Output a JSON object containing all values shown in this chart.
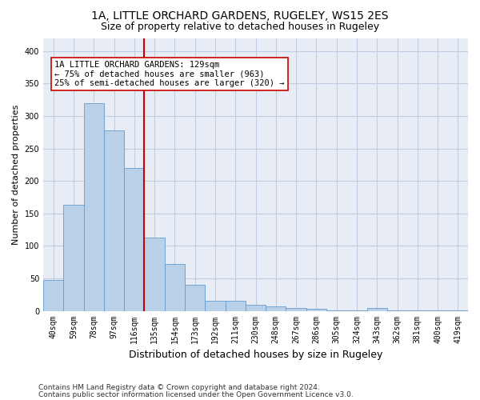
{
  "title": "1A, LITTLE ORCHARD GARDENS, RUGELEY, WS15 2ES",
  "subtitle": "Size of property relative to detached houses in Rugeley",
  "xlabel": "Distribution of detached houses by size in Rugeley",
  "ylabel": "Number of detached properties",
  "categories": [
    "40sqm",
    "59sqm",
    "78sqm",
    "97sqm",
    "116sqm",
    "135sqm",
    "154sqm",
    "173sqm",
    "192sqm",
    "211sqm",
    "230sqm",
    "248sqm",
    "267sqm",
    "286sqm",
    "305sqm",
    "324sqm",
    "343sqm",
    "362sqm",
    "381sqm",
    "400sqm",
    "419sqm"
  ],
  "values": [
    47,
    163,
    320,
    278,
    220,
    113,
    72,
    40,
    15,
    15,
    9,
    7,
    4,
    3,
    1,
    1,
    4,
    1,
    1,
    1,
    1
  ],
  "bar_color": "#b8d0e8",
  "bar_edge_color": "#6699cc",
  "vline_color": "#cc0000",
  "vline_pos": 4.5,
  "annotation_text": "1A LITTLE ORCHARD GARDENS: 129sqm\n← 75% of detached houses are smaller (963)\n25% of semi-detached houses are larger (320) →",
  "annotation_box_color": "#ffffff",
  "annotation_box_edge_color": "#cc0000",
  "ylim": [
    0,
    420
  ],
  "yticks": [
    0,
    50,
    100,
    150,
    200,
    250,
    300,
    350,
    400
  ],
  "footnote1": "Contains HM Land Registry data © Crown copyright and database right 2024.",
  "footnote2": "Contains public sector information licensed under the Open Government Licence v3.0.",
  "background_color": "#ffffff",
  "axes_bg_color": "#e8edf5",
  "grid_color": "#c0cce0",
  "title_fontsize": 10,
  "subtitle_fontsize": 9,
  "xlabel_fontsize": 9,
  "ylabel_fontsize": 8,
  "tick_fontsize": 7,
  "annotation_fontsize": 7.5,
  "footnote_fontsize": 6.5
}
